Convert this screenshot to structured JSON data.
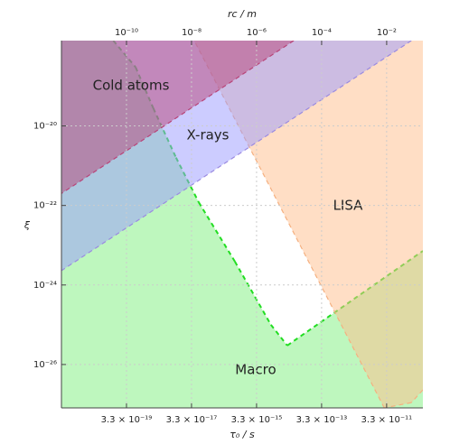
{
  "chart_data": {
    "type": "region",
    "xlabel": "τ₀ / s",
    "x2label": "rc / m",
    "ylabel": "ξ",
    "xscale": "log",
    "yscale": "log",
    "grid": true,
    "xlim": [
      3.3e-21,
      4.3e-10
    ],
    "xticks": [
      {
        "value": 3.3e-19,
        "label": "3.3 × 10⁻¹⁹"
      },
      {
        "value": 3.3e-17,
        "label": "3.3 × 10⁻¹⁷"
      },
      {
        "value": 3.3e-15,
        "label": "3.3 × 10⁻¹⁵"
      },
      {
        "value": 3.3e-13,
        "label": "3.3 × 10⁻¹³"
      },
      {
        "value": 3.3e-11,
        "label": "3.3 × 10⁻¹¹"
      }
    ],
    "x2lim": [
      1e-12,
      0.13
    ],
    "x2ticks": [
      {
        "value": 1e-10,
        "label": "10⁻¹⁰"
      },
      {
        "value": 1e-08,
        "label": "10⁻⁸"
      },
      {
        "value": 1e-06,
        "label": "10⁻⁶"
      },
      {
        "value": 0.0001,
        "label": "10⁻⁴"
      },
      {
        "value": 0.01,
        "label": "10⁻²"
      }
    ],
    "ylim": [
      8.1e-28,
      1.4e-18
    ],
    "yticks": [
      {
        "value": 1e-20,
        "label": "10⁻²⁰"
      },
      {
        "value": 1e-22,
        "label": "10⁻²²"
      },
      {
        "value": 1e-24,
        "label": "10⁻²⁴"
      },
      {
        "value": 1e-26,
        "label": "10⁻²⁶"
      }
    ],
    "series": [
      {
        "name": "Macro",
        "color": "#7ef07e",
        "edgecolor": "#22dd22",
        "x": [
          3.3e-21,
          1.3e-19,
          6.3e-19,
          2.2e-18,
          1.1e-17,
          5.5e-17,
          7.1e-16,
          9.1e-15,
          2.9e-14,
          4.3e-10,
          4.3e-10,
          3.3e-21
        ],
        "y": [
          1.4e-18,
          1.4e-18,
          3e-19,
          2.8e-20,
          1.6e-21,
          1.2e-22,
          3.9e-24,
          1e-25,
          3e-26,
          7.2e-24,
          8.1e-28,
          8.1e-28
        ]
      },
      {
        "name": "LISA",
        "color": "#ffbe8c",
        "edgecolor": "#f5b080",
        "x": [
          4e-17,
          4.3e-10,
          4.3e-10,
          1.9e-10,
          2.8e-11
        ],
        "y": [
          1.4e-18,
          1.4e-18,
          2.3e-27,
          1.1e-27,
          8.1e-28
        ]
      },
      {
        "name": "X-rays",
        "color": "#9a9aff",
        "edgecolor": "#9a8ae0",
        "x": [
          3.3e-21,
          1.9e-10,
          3.3e-21
        ],
        "y": [
          1.4e-18,
          1.4e-18,
          2.3e-24
        ]
      },
      {
        "name": "Cold atoms",
        "color": "#b84478",
        "edgecolor": "#b84478",
        "x": [
          3.3e-21,
          4.6e-14,
          3.3e-21
        ],
        "y": [
          1.4e-18,
          1.4e-18,
          2e-22
        ]
      }
    ]
  }
}
